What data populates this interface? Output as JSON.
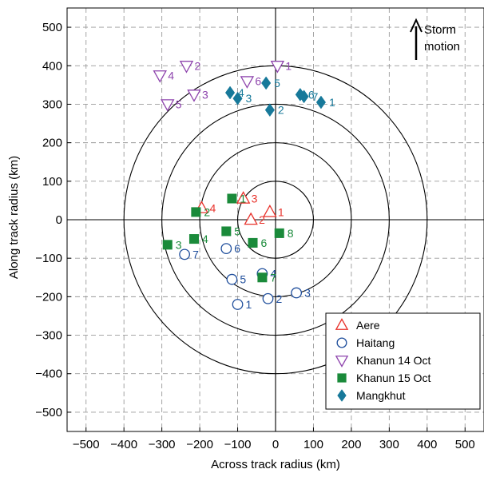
{
  "chart_data": {
    "type": "scatter",
    "xlabel": "Across track radius (km)",
    "ylabel": "Along track radius (km)",
    "xlim": [
      -550,
      550
    ],
    "ylim": [
      -550,
      550
    ],
    "xticks": [
      "−500",
      "−400",
      "−300",
      "−200",
      "−100",
      "0",
      "100",
      "200",
      "300",
      "400",
      "500"
    ],
    "yticks": [
      "500",
      "400",
      "300",
      "200",
      "100",
      "0",
      "−100",
      "−200",
      "−300",
      "−400",
      "−500"
    ],
    "grid": true,
    "range_rings_km": [
      100,
      200,
      300,
      400
    ],
    "annotation": {
      "line1": "Storm",
      "line2": "motion"
    },
    "legend_position": "bottom-right",
    "series": [
      {
        "name": "Aere",
        "marker": "triangle-up",
        "color": "#e8312a",
        "points": [
          {
            "label": "1",
            "x": -15,
            "y": 20
          },
          {
            "label": "2",
            "x": -65,
            "y": 0
          },
          {
            "label": "3",
            "x": -85,
            "y": 55
          },
          {
            "label": "4",
            "x": -195,
            "y": 30
          }
        ]
      },
      {
        "name": "Haitang",
        "marker": "circle",
        "color": "#1f4e9c",
        "points": [
          {
            "label": "1",
            "x": -100,
            "y": -220
          },
          {
            "label": "2",
            "x": -20,
            "y": -205
          },
          {
            "label": "3",
            "x": 55,
            "y": -190
          },
          {
            "label": "4",
            "x": -35,
            "y": -140
          },
          {
            "label": "5",
            "x": -115,
            "y": -155
          },
          {
            "label": "6",
            "x": -130,
            "y": -75
          },
          {
            "label": "7",
            "x": -240,
            "y": -90
          }
        ]
      },
      {
        "name": "Khanun 14 Oct",
        "marker": "triangle-down",
        "color": "#8e44ad",
        "points": [
          {
            "label": "1",
            "x": 5,
            "y": 400
          },
          {
            "label": "2",
            "x": -235,
            "y": 400
          },
          {
            "label": "3",
            "x": -215,
            "y": 325
          },
          {
            "label": "4",
            "x": -305,
            "y": 375
          },
          {
            "label": "5",
            "x": -285,
            "y": 300
          },
          {
            "label": "6",
            "x": -75,
            "y": 360
          }
        ]
      },
      {
        "name": "Khanun 15 Oct",
        "marker": "square",
        "color": "#1a8a3a",
        "points": [
          {
            "label": "1",
            "x": -115,
            "y": 55
          },
          {
            "label": "2",
            "x": -210,
            "y": 20
          },
          {
            "label": "3",
            "x": -285,
            "y": -65
          },
          {
            "label": "4",
            "x": -215,
            "y": -50
          },
          {
            "label": "5",
            "x": -130,
            "y": -30
          },
          {
            "label": "6",
            "x": -60,
            "y": -60
          },
          {
            "label": "7",
            "x": -35,
            "y": -150
          },
          {
            "label": "8",
            "x": 10,
            "y": -35
          }
        ]
      },
      {
        "name": "Mangkhut",
        "marker": "diamond",
        "color": "#17799a",
        "points": [
          {
            "label": "1",
            "x": 120,
            "y": 305
          },
          {
            "label": "2",
            "x": -15,
            "y": 285
          },
          {
            "label": "3",
            "x": -100,
            "y": 315
          },
          {
            "label": "4",
            "x": -120,
            "y": 330
          },
          {
            "label": "5",
            "x": -25,
            "y": 355
          },
          {
            "label": "6",
            "x": 65,
            "y": 325
          },
          {
            "label": "7",
            "x": 75,
            "y": 320
          }
        ]
      }
    ]
  }
}
